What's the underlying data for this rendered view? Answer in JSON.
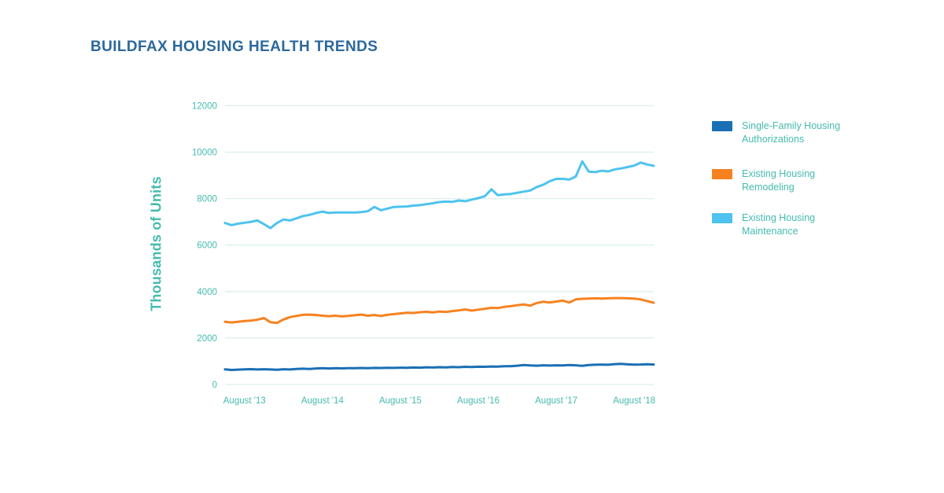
{
  "title": "BUILDFAX HOUSING HEALTH TRENDS",
  "colors": {
    "title_text": "#2d689c",
    "axis_text": "#45bbae",
    "gridline": "#d9efee",
    "background": "#ffffff",
    "series_authorizations": "#1a6fb5",
    "series_remodeling": "#f6821f",
    "series_maintenance": "#4ec3ef"
  },
  "legend": {
    "items": [
      {
        "label_line1": "Single-Family Housing",
        "label_line2": "Authorizations",
        "color": "#1a6fb5"
      },
      {
        "label_line1": "Existing Housing",
        "label_line2": "Remodeling",
        "color": "#f6821f"
      },
      {
        "label_line1": "Existing Housing",
        "label_line2": "Maintenance",
        "color": "#4ec3ef"
      }
    ]
  },
  "chart_data": {
    "type": "line",
    "title": "BUILDFAX HOUSING HEALTH TRENDS",
    "xlabel": "",
    "ylabel": "Thousands of Units",
    "ylim": [
      0,
      12000
    ],
    "y_ticks": [
      0,
      2000,
      4000,
      6000,
      8000,
      10000,
      12000
    ],
    "x_tick_labels": [
      "August '13",
      "August '14",
      "August '15",
      "August '16",
      "August '17",
      "August '18"
    ],
    "x_tick_indices": [
      3,
      15,
      27,
      39,
      51,
      63
    ],
    "grid": true,
    "legend_position": "right",
    "x": [
      "May '13",
      "Jun '13",
      "Jul '13",
      "Aug '13",
      "Sep '13",
      "Oct '13",
      "Nov '13",
      "Dec '13",
      "Jan '14",
      "Feb '14",
      "Mar '14",
      "Apr '14",
      "May '14",
      "Jun '14",
      "Jul '14",
      "Aug '14",
      "Sep '14",
      "Oct '14",
      "Nov '14",
      "Dec '14",
      "Jan '15",
      "Feb '15",
      "Mar '15",
      "Apr '15",
      "May '15",
      "Jun '15",
      "Jul '15",
      "Aug '15",
      "Sep '15",
      "Oct '15",
      "Nov '15",
      "Dec '15",
      "Jan '16",
      "Feb '16",
      "Mar '16",
      "Apr '16",
      "May '16",
      "Jun '16",
      "Jul '16",
      "Aug '16",
      "Sep '16",
      "Oct '16",
      "Nov '16",
      "Dec '16",
      "Jan '17",
      "Feb '17",
      "Mar '17",
      "Apr '17",
      "May '17",
      "Jun '17",
      "Jul '17",
      "Aug '17",
      "Sep '17",
      "Oct '17",
      "Nov '17",
      "Dec '17",
      "Jan '18",
      "Feb '18",
      "Mar '18",
      "Apr '18",
      "May '18",
      "Jun '18",
      "Jul '18",
      "Aug '18",
      "Sep '18",
      "Oct '18",
      "Nov '18"
    ],
    "series": [
      {
        "name": "Single-Family Housing Authorizations",
        "color": "#1a6fb5",
        "values": [
          650,
          625,
          640,
          650,
          660,
          645,
          655,
          645,
          635,
          655,
          645,
          665,
          680,
          670,
          690,
          700,
          690,
          700,
          695,
          705,
          700,
          710,
          700,
          715,
          710,
          720,
          715,
          725,
          720,
          730,
          725,
          740,
          730,
          745,
          735,
          750,
          745,
          760,
          750,
          765,
          760,
          775,
          770,
          785,
          790,
          810,
          840,
          820,
          810,
          825,
          815,
          825,
          820,
          835,
          825,
          805,
          835,
          850,
          855,
          850,
          875,
          885,
          865,
          855,
          860,
          870,
          860
        ]
      },
      {
        "name": "Existing Housing Remodeling",
        "color": "#f6821f",
        "values": [
          2700,
          2670,
          2700,
          2730,
          2750,
          2790,
          2860,
          2680,
          2650,
          2800,
          2900,
          2950,
          3000,
          3010,
          2990,
          2960,
          2940,
          2960,
          2930,
          2950,
          2980,
          3010,
          2960,
          2990,
          2950,
          3000,
          3030,
          3060,
          3090,
          3080,
          3110,
          3130,
          3100,
          3140,
          3120,
          3160,
          3190,
          3230,
          3180,
          3220,
          3260,
          3300,
          3290,
          3340,
          3370,
          3410,
          3450,
          3390,
          3510,
          3560,
          3530,
          3570,
          3610,
          3530,
          3660,
          3690,
          3700,
          3710,
          3700,
          3710,
          3720,
          3720,
          3710,
          3700,
          3660,
          3590,
          3520
        ]
      },
      {
        "name": "Existing Housing Maintenance",
        "color": "#4ec3ef",
        "values": [
          6950,
          6860,
          6920,
          6960,
          7000,
          7060,
          6900,
          6730,
          6950,
          7100,
          7060,
          7150,
          7250,
          7300,
          7380,
          7440,
          7380,
          7400,
          7400,
          7400,
          7400,
          7420,
          7460,
          7640,
          7500,
          7570,
          7640,
          7650,
          7660,
          7700,
          7720,
          7760,
          7800,
          7850,
          7870,
          7860,
          7920,
          7890,
          7960,
          8020,
          8100,
          8400,
          8150,
          8180,
          8200,
          8250,
          8300,
          8350,
          8500,
          8600,
          8750,
          8850,
          8850,
          8820,
          8950,
          9600,
          9160,
          9140,
          9200,
          9170,
          9260,
          9300,
          9360,
          9420,
          9550,
          9470,
          9410
        ]
      }
    ]
  }
}
